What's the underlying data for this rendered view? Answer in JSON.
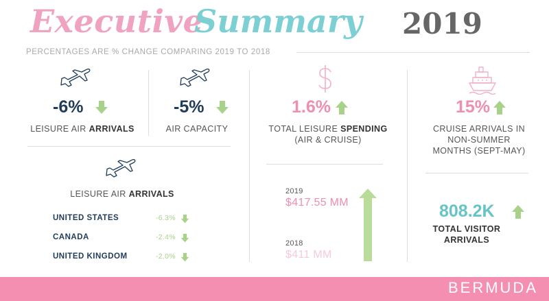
{
  "header": {
    "title_part1": "Executive",
    "title_part2": "Summary",
    "year": "2019",
    "subtitle": "PERCENTAGES ARE % CHANGE COMPARING 2019 TO 2018"
  },
  "stats": {
    "leisure_air_arrivals": {
      "value": "-6%",
      "label_pre": "LEISURE AIR ",
      "label_bold": "ARRIVALS",
      "direction": "down"
    },
    "air_capacity": {
      "value": "-5%",
      "label": "AIR CAPACITY",
      "direction": "down"
    },
    "total_spending": {
      "value": "1.6%",
      "label_pre": "TOTAL LEISURE ",
      "label_bold": "SPENDING",
      "label_line2": "(AIR & CRUISE)",
      "direction": "up"
    },
    "cruise_arrivals": {
      "value": "15%",
      "label_line1": "CRUISE ARRIVALS IN",
      "label_line2": "NON-SUMMER",
      "label_line3": "MONTHS (SEPT-MAY)",
      "direction": "up"
    },
    "total_visitors": {
      "value": "808.2K",
      "label_line1": "TOTAL VISITOR",
      "label_line2": "ARRIVALS",
      "direction": "up"
    }
  },
  "country_breakdown": {
    "title_pre": "LEISURE AIR ",
    "title_bold": "ARRIVALS",
    "rows": [
      {
        "country": "UNITED STATES",
        "value": "-6.3%"
      },
      {
        "country": "CANADA",
        "value": "-2.4%"
      },
      {
        "country": "UNITED KINGDOM",
        "value": "-2.0%"
      }
    ]
  },
  "spending_compare": {
    "y2019": {
      "year": "2019",
      "amount": "$417.55 MM"
    },
    "y2018": {
      "year": "2018",
      "amount": "$411 MM"
    }
  },
  "footer": {
    "brand": "BERMUDA"
  },
  "colors": {
    "pink": "#ee8fae",
    "teal": "#67c4c6",
    "navy": "#1f3c5a",
    "green": "#a8d28a",
    "footer_pink": "#f48fb1"
  },
  "icons": [
    "airplane-icon",
    "dollar-icon",
    "cruise-ship-icon",
    "arrow-up-icon",
    "arrow-down-icon"
  ]
}
